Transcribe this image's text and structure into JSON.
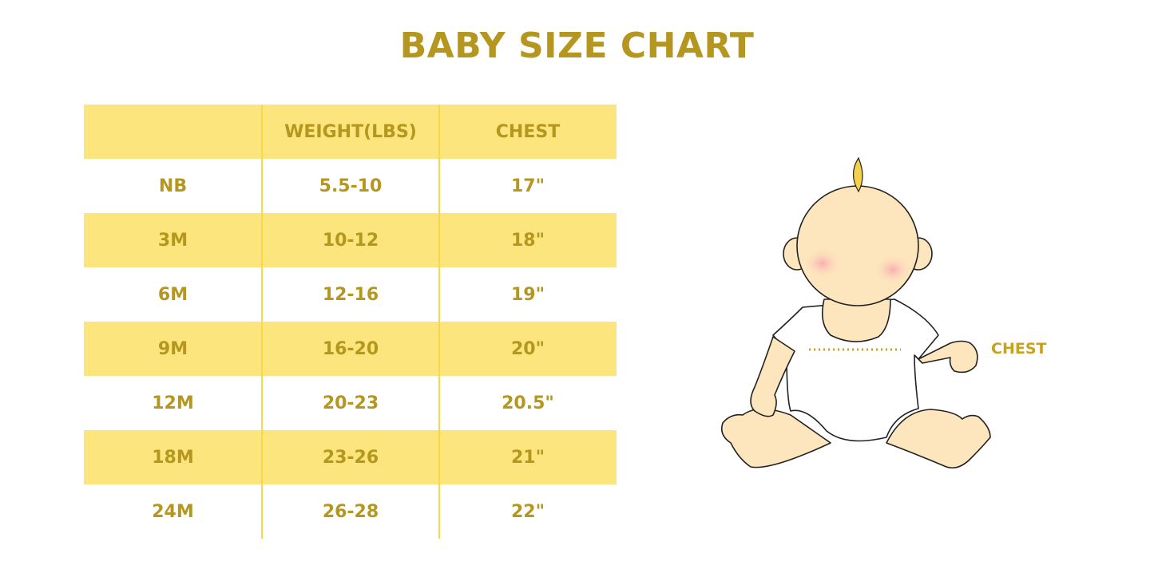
{
  "title": "BABY SIZE CHART",
  "table": {
    "headers": [
      "",
      "WEIGHT(LBS)",
      "CHEST"
    ],
    "rows": [
      [
        "NB",
        "5.5-10",
        "17\""
      ],
      [
        "3M",
        "10-12",
        "18\""
      ],
      [
        "6M",
        "12-16",
        "19\""
      ],
      [
        "9M",
        "16-20",
        "20\""
      ],
      [
        "12M",
        "20-23",
        "20.5\""
      ],
      [
        "18M",
        "23-26",
        "21\""
      ],
      [
        "24M",
        "26-28",
        "22\""
      ]
    ]
  },
  "illustration": {
    "chest_label": "CHEST"
  },
  "colors": {
    "text": "#b5961f",
    "band": "#fbe57c",
    "skin": "#fde5bd"
  }
}
